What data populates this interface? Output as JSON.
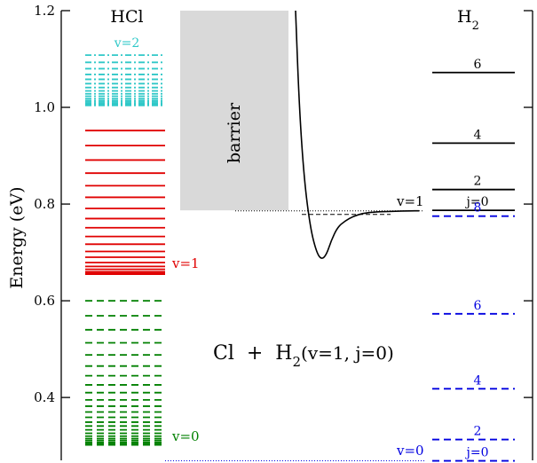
{
  "chart_data": {
    "type": "energy-level-diagram",
    "ylabel": "Energy (eV)",
    "ylim": [
      0.27,
      1.2
    ],
    "yticks": [
      "0.4",
      "0.6",
      "0.8",
      "1.0",
      "1.2"
    ],
    "reaction_label": {
      "prefix": "Cl  +  H",
      "subscript": "2",
      "suffix": "(v=1, j=0)"
    },
    "hcl": {
      "title": "HCl",
      "v0": {
        "label": "v=0",
        "color": "#008000",
        "style": "dashed",
        "levels": [
          0.6,
          0.569,
          0.54,
          0.513,
          0.488,
          0.465,
          0.445,
          0.426,
          0.41,
          0.395,
          0.382,
          0.37,
          0.359,
          0.349,
          0.341,
          0.333,
          0.326,
          0.32,
          0.315,
          0.311,
          0.307,
          0.304,
          0.302
        ]
      },
      "v1": {
        "label": "v=1",
        "color": "#e00000",
        "style": "solid",
        "levels": [
          0.952,
          0.921,
          0.891,
          0.864,
          0.838,
          0.814,
          0.791,
          0.77,
          0.751,
          0.733,
          0.717,
          0.702,
          0.69,
          0.679,
          0.671,
          0.665,
          0.66,
          0.657,
          0.655
        ]
      },
      "v2": {
        "label": "v=2",
        "color": "#30c8c8",
        "style": "dashdot",
        "levels": [
          1.108,
          1.093,
          1.08,
          1.068,
          1.058,
          1.049,
          1.041,
          1.034,
          1.028,
          1.023,
          1.018,
          1.014,
          1.011,
          1.008,
          1.006,
          1.004
        ]
      }
    },
    "barrier": {
      "label": "barrier",
      "color": "#d9d9d9",
      "bottom": 0.787,
      "top": 1.2
    },
    "curve": {
      "label": "v=1",
      "points": [
        [
          0,
          1.2
        ],
        [
          0.03,
          1.0
        ],
        [
          0.07,
          0.85
        ],
        [
          0.12,
          0.75
        ],
        [
          0.17,
          0.7
        ],
        [
          0.21,
          0.685
        ],
        [
          0.25,
          0.695
        ],
        [
          0.29,
          0.725
        ],
        [
          0.34,
          0.752
        ],
        [
          0.4,
          0.765
        ],
        [
          0.47,
          0.775
        ],
        [
          0.55,
          0.781
        ],
        [
          0.65,
          0.784
        ],
        [
          0.8,
          0.785
        ],
        [
          0.93,
          0.786
        ],
        [
          1.0,
          0.786
        ]
      ],
      "asymptote": 0.786
    },
    "h2": {
      "title_main": "H",
      "title_sub": "2",
      "v1": {
        "label": "v=1",
        "color": "#000000",
        "style": "solid",
        "levels": [
          {
            "j": "j=0",
            "energy": 0.787
          },
          {
            "j": "2",
            "energy": 0.83
          },
          {
            "j": "4",
            "energy": 0.926
          },
          {
            "j": "6",
            "energy": 1.072
          }
        ]
      },
      "v0": {
        "label": "v=0",
        "color": "#0000e0",
        "style": "dashed",
        "levels": [
          {
            "j": "j=0",
            "energy": 0.269
          },
          {
            "j": "2",
            "energy": 0.313
          },
          {
            "j": "4",
            "energy": 0.418
          },
          {
            "j": "6",
            "energy": 0.573
          },
          {
            "j": "8",
            "energy": 0.775
          }
        ]
      }
    }
  }
}
